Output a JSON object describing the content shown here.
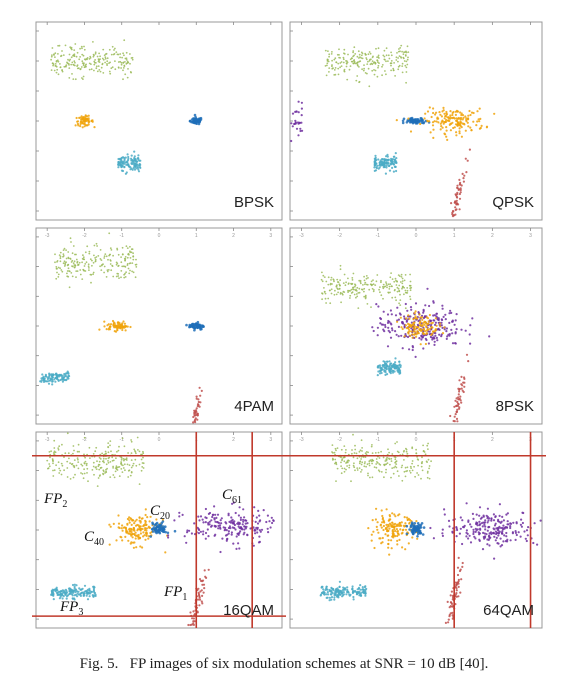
{
  "caption": {
    "label": "Fig. 5.",
    "text": "FP images of six modulation schemes at SNR = 10 dB [40]."
  },
  "colors": {
    "green": "#9bbb59",
    "orange": "#f0a30a",
    "blue": "#1f6fb8",
    "lightblue": "#4bacc6",
    "purple": "#7030a0",
    "red": "#c0504d",
    "frame": "#999999",
    "redline": "#c0392b"
  },
  "annotations": {
    "fp2": "FP",
    "fp2_sub": "2",
    "fp3": "FP",
    "fp3_sub": "3",
    "fp1": "FP",
    "fp1_sub": "1",
    "c40": "C",
    "c40_sub": "40",
    "c20": "C",
    "c20_sub": "20",
    "c61": "C",
    "c61_sub": "61"
  },
  "chart_data": [
    {
      "type": "scatter",
      "title": "BPSK",
      "xlim": [
        -3.3,
        3.3
      ],
      "ylim": [
        -3.3,
        3.3
      ],
      "ticks_x": [
        "-3",
        "-2",
        "-1",
        "0",
        "1",
        "2",
        "3"
      ],
      "grid": false,
      "clusters": [
        {
          "feature": "green",
          "center": [
            -1.8,
            2.0
          ],
          "spread": [
            1.1,
            0.25
          ],
          "n": 220
        },
        {
          "feature": "orange",
          "center": [
            -2.0,
            0.0
          ],
          "spread": [
            0.12,
            0.08
          ],
          "n": 60
        },
        {
          "feature": "blue",
          "center": [
            1.0,
            0.0
          ],
          "spread": [
            0.08,
            0.06
          ],
          "n": 60
        },
        {
          "feature": "lightblue",
          "center": [
            -0.8,
            -1.4
          ],
          "spread": [
            0.3,
            0.12
          ],
          "n": 120
        }
      ]
    },
    {
      "type": "scatter",
      "title": "QPSK",
      "xlim": [
        -3.3,
        3.3
      ],
      "ylim": [
        -3.3,
        3.3
      ],
      "ticks_x": [
        "-3",
        "-2",
        "-1",
        "0",
        "1",
        "2",
        "3"
      ],
      "grid": false,
      "clusters": [
        {
          "feature": "green",
          "center": [
            -1.3,
            2.0
          ],
          "spread": [
            1.1,
            0.25
          ],
          "n": 220
        },
        {
          "feature": "purple",
          "center": [
            -3.2,
            0.0
          ],
          "spread": [
            0.15,
            0.3
          ],
          "n": 40
        },
        {
          "feature": "blue",
          "center": [
            0.0,
            0.0
          ],
          "spread": [
            0.15,
            0.05
          ],
          "n": 60
        },
        {
          "feature": "orange",
          "center": [
            1.0,
            0.0
          ],
          "spread": [
            0.4,
            0.2
          ],
          "n": 160
        },
        {
          "feature": "lightblue",
          "center": [
            -0.8,
            -1.4
          ],
          "spread": [
            0.3,
            0.12
          ],
          "n": 120
        },
        {
          "feature": "red",
          "center": [
            1.05,
            -2.7
          ],
          "spread": [
            0.05,
            0.6
          ],
          "n": 60,
          "tilt": 0.18
        }
      ]
    },
    {
      "type": "scatter",
      "title": "4PAM",
      "xlim": [
        -3.3,
        3.3
      ],
      "ylim": [
        -3.3,
        3.3
      ],
      "ticks_x": [
        "-3",
        "-2",
        "-1",
        "0",
        "1",
        "2",
        "3"
      ],
      "grid": false,
      "clusters": [
        {
          "feature": "green",
          "center": [
            -1.7,
            2.1
          ],
          "spread": [
            1.1,
            0.3
          ],
          "n": 220
        },
        {
          "feature": "orange",
          "center": [
            -1.1,
            0.0
          ],
          "spread": [
            0.15,
            0.08
          ],
          "n": 70
        },
        {
          "feature": "blue",
          "center": [
            1.0,
            0.0
          ],
          "spread": [
            0.1,
            0.06
          ],
          "n": 60
        },
        {
          "feature": "lightblue",
          "center": [
            -2.8,
            -1.75
          ],
          "spread": [
            0.4,
            0.1
          ],
          "n": 100
        },
        {
          "feature": "red",
          "center": [
            1.0,
            -2.9
          ],
          "spread": [
            0.04,
            0.3
          ],
          "n": 40,
          "tilt": 0.15
        }
      ]
    },
    {
      "type": "scatter",
      "title": "8PSK",
      "xlim": [
        -3.3,
        3.3
      ],
      "ylim": [
        -3.3,
        3.3
      ],
      "ticks_x": [
        "-3",
        "-2",
        "-1",
        "0",
        "1",
        "2",
        "3"
      ],
      "grid": false,
      "clusters": [
        {
          "feature": "green",
          "center": [
            -1.3,
            1.3
          ],
          "spread": [
            1.2,
            0.25
          ],
          "n": 220
        },
        {
          "feature": "purple",
          "center": [
            0.1,
            0.0
          ],
          "spread": [
            0.55,
            0.35
          ],
          "n": 260
        },
        {
          "feature": "orange",
          "center": [
            0.1,
            0.0
          ],
          "spread": [
            0.25,
            0.2
          ],
          "n": 120
        },
        {
          "feature": "lightblue",
          "center": [
            -0.7,
            -1.4
          ],
          "spread": [
            0.3,
            0.12
          ],
          "n": 120
        },
        {
          "feature": "red",
          "center": [
            1.1,
            -2.6
          ],
          "spread": [
            0.05,
            0.6
          ],
          "n": 60,
          "tilt": 0.18
        }
      ]
    },
    {
      "type": "scatter",
      "title": "16QAM",
      "xlim": [
        -3.3,
        3.3
      ],
      "ylim": [
        -3.3,
        3.3
      ],
      "ticks_x": [
        "-3",
        "-2",
        "-1",
        "0",
        "1",
        "2",
        "3"
      ],
      "grid": false,
      "guide_lines": {
        "x": [
          1.0,
          2.5
        ],
        "y": [
          2.5,
          -2.9
        ]
      },
      "clusters": [
        {
          "feature": "green",
          "center": [
            -1.7,
            2.3
          ],
          "spread": [
            1.3,
            0.3
          ],
          "n": 240
        },
        {
          "feature": "orange",
          "center": [
            -0.6,
            0.0
          ],
          "spread": [
            0.3,
            0.25
          ],
          "n": 150
        },
        {
          "feature": "blue",
          "center": [
            0.0,
            0.05
          ],
          "spread": [
            0.1,
            0.1
          ],
          "n": 60
        },
        {
          "feature": "purple",
          "center": [
            1.9,
            0.1
          ],
          "spread": [
            0.6,
            0.3
          ],
          "n": 200
        },
        {
          "feature": "lightblue",
          "center": [
            -2.3,
            -2.1
          ],
          "spread": [
            0.6,
            0.1
          ],
          "n": 160
        },
        {
          "feature": "red",
          "center": [
            1.05,
            -2.4
          ],
          "spread": [
            0.05,
            0.6
          ],
          "n": 60,
          "tilt": 0.18
        }
      ]
    },
    {
      "type": "scatter",
      "title": "64QAM",
      "xlim": [
        -3.3,
        3.3
      ],
      "ylim": [
        -3.3,
        3.3
      ],
      "ticks_x": [
        "-3",
        "-2",
        "-1",
        "0",
        "1",
        "2",
        "3"
      ],
      "grid": false,
      "guide_lines": {
        "x": [
          1.0,
          3.0
        ],
        "y": [
          2.5
        ]
      },
      "clusters": [
        {
          "feature": "green",
          "center": [
            -0.9,
            2.3
          ],
          "spread": [
            1.3,
            0.3
          ],
          "n": 240
        },
        {
          "feature": "orange",
          "center": [
            -0.6,
            0.0
          ],
          "spread": [
            0.3,
            0.25
          ],
          "n": 150
        },
        {
          "feature": "blue",
          "center": [
            0.0,
            0.05
          ],
          "spread": [
            0.1,
            0.1
          ],
          "n": 60
        },
        {
          "feature": "purple",
          "center": [
            2.0,
            0.05
          ],
          "spread": [
            0.6,
            0.3
          ],
          "n": 220
        },
        {
          "feature": "lightblue",
          "center": [
            -1.9,
            -2.1
          ],
          "spread": [
            0.6,
            0.1
          ],
          "n": 160
        },
        {
          "feature": "red",
          "center": [
            1.0,
            -2.3
          ],
          "spread": [
            0.05,
            0.6
          ],
          "n": 60,
          "tilt": 0.18
        }
      ]
    }
  ]
}
